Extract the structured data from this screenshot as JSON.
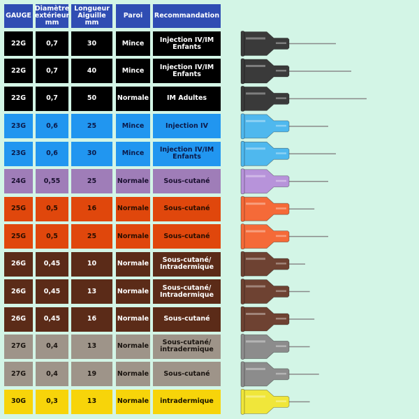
{
  "header": [
    "GAUGE",
    "Diamètre\nextérieur\nmm",
    "Longueur\nAiguille\nmm",
    "Paroi",
    "Recommandation"
  ],
  "colors": {
    "background": "#d3f5e6",
    "header": "#2f4db3",
    "black": {
      "row": "#000000",
      "text": "#ffffff",
      "hub": "#3a3a3a"
    },
    "blue": {
      "row": "#2196f0",
      "text": "#0b1a4a",
      "hub": "#4fb8ee"
    },
    "purple": {
      "row": "#9f7db8",
      "text": "#1a1030",
      "hub": "#b793da"
    },
    "orange": {
      "row": "#e0470c",
      "text": "#2a0e00",
      "hub": "#f56a38"
    },
    "brown": {
      "row": "#5b2b18",
      "text": "#ffffff",
      "hub": "#6e4232"
    },
    "gray": {
      "row": "#9e9489",
      "text": "#1a1410",
      "hub": "#8c8c8c"
    },
    "yellow": {
      "row": "#f7d40a",
      "text": "#1a1400",
      "hub": "#f0e63a"
    }
  },
  "rows": [
    {
      "gauge": "22G",
      "diameter": "0,7",
      "length": "30",
      "wall": "Mince",
      "use": "Injection IV/IM\nEnfants",
      "color": "black"
    },
    {
      "gauge": "22G",
      "diameter": "0,7",
      "length": "40",
      "wall": "Mince",
      "use": "Injection IV/IM\nEnfants",
      "color": "black"
    },
    {
      "gauge": "22G",
      "diameter": "0,7",
      "length": "50",
      "wall": "Normale",
      "use": "IM Adultes",
      "color": "black"
    },
    {
      "gauge": "23G",
      "diameter": "0,6",
      "length": "25",
      "wall": "Mince",
      "use": "Injection IV",
      "color": "blue"
    },
    {
      "gauge": "23G",
      "diameter": "0,6",
      "length": "30",
      "wall": "Mince",
      "use": "Injection IV/IM\nEnfants",
      "color": "blue"
    },
    {
      "gauge": "24G",
      "diameter": "0,55",
      "length": "25",
      "wall": "Normale",
      "use": "Sous-cutané",
      "color": "purple"
    },
    {
      "gauge": "25G",
      "diameter": "0,5",
      "length": "16",
      "wall": "Normale",
      "use": "Sous-cutané",
      "color": "orange"
    },
    {
      "gauge": "25G",
      "diameter": "0,5",
      "length": "25",
      "wall": "Normale",
      "use": "Sous-cutané",
      "color": "orange"
    },
    {
      "gauge": "26G",
      "diameter": "0,45",
      "length": "10",
      "wall": "Normale",
      "use": "Sous-cutané/\nIntradermique",
      "color": "brown"
    },
    {
      "gauge": "26G",
      "diameter": "0,45",
      "length": "13",
      "wall": "Normale",
      "use": "Sous-cutané/\nIntradermique",
      "color": "brown"
    },
    {
      "gauge": "26G",
      "diameter": "0,45",
      "length": "16",
      "wall": "Normale",
      "use": "Sous-cutané",
      "color": "brown"
    },
    {
      "gauge": "27G",
      "diameter": "0,4",
      "length": "13",
      "wall": "Normale",
      "use": "Sous-cutané/\nintradermique",
      "color": "gray"
    },
    {
      "gauge": "27G",
      "diameter": "0,4",
      "length": "19",
      "wall": "Normale",
      "use": "Sous-cutané",
      "color": "gray"
    },
    {
      "gauge": "30G",
      "diameter": "0,3",
      "length": "13",
      "wall": "Normale",
      "use": "intradermique",
      "color": "yellow"
    }
  ]
}
